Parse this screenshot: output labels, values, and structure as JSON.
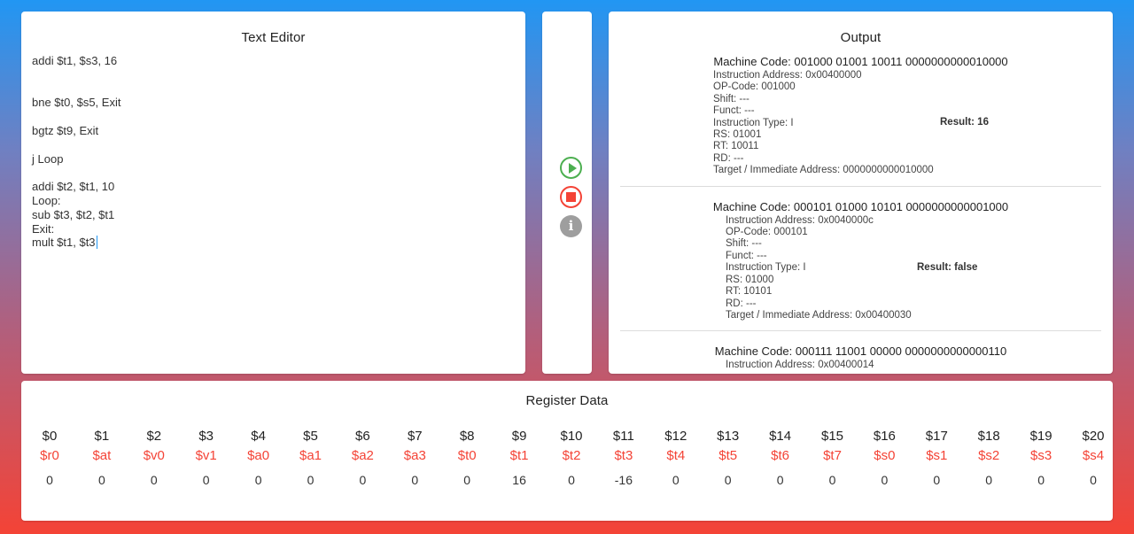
{
  "editor": {
    "title": "Text Editor",
    "lines": [
      "addi $t1, $s3, 16",
      "",
      "",
      "bne $t0, $s5, Exit",
      "",
      "bgtz $t9, Exit",
      "",
      "j Loop",
      "",
      "addi $t2, $t1, 10",
      "Loop:",
      "sub $t3, $t2, $t1",
      "Exit:",
      "mult $t1, $t3"
    ]
  },
  "controls": {
    "run": {
      "icon": "play-circle-icon",
      "color": "#4caf50"
    },
    "stop": {
      "icon": "stop-circle-icon",
      "color": "#f44336"
    },
    "info": {
      "icon": "info-icon",
      "label": "i",
      "color": "#9e9e9e"
    }
  },
  "output": {
    "title": "Output",
    "blocks": [
      {
        "machine_code": "Machine Code: 001000 01001 10011 0000000000010000",
        "instruction_address": "Instruction Address: 0x00400000",
        "op_code": "OP-Code: 001000",
        "shift": "Shift: ---",
        "funct": "Funct: ---",
        "instruction_type": "Instruction Type: I",
        "result": "Result: 16",
        "rs": "RS: 01001",
        "rt": "RT: 10011",
        "rd": "RD: ---",
        "target": "Target / Immediate Address: 0000000000010000"
      },
      {
        "machine_code": "Machine Code: 000101 01000 10101 0000000000001000",
        "instruction_address": "Instruction Address: 0x0040000c",
        "op_code": "OP-Code: 000101",
        "shift": "Shift: ---",
        "funct": "Funct: ---",
        "instruction_type": "Instruction Type: I",
        "result": "Result: false",
        "rs": "RS: 01000",
        "rt": "RT: 10101",
        "rd": "RD: ---",
        "target": "Target / Immediate Address: 0x00400030"
      },
      {
        "machine_code": "Machine Code: 000111 11001 00000 0000000000000110",
        "instruction_address": "Instruction Address: 0x00400014"
      }
    ]
  },
  "registers": {
    "title": "Register Data",
    "items": [
      {
        "num": "$0",
        "alias": "$r0",
        "value": "0"
      },
      {
        "num": "$1",
        "alias": "$at",
        "value": "0"
      },
      {
        "num": "$2",
        "alias": "$v0",
        "value": "0"
      },
      {
        "num": "$3",
        "alias": "$v1",
        "value": "0"
      },
      {
        "num": "$4",
        "alias": "$a0",
        "value": "0"
      },
      {
        "num": "$5",
        "alias": "$a1",
        "value": "0"
      },
      {
        "num": "$6",
        "alias": "$a2",
        "value": "0"
      },
      {
        "num": "$7",
        "alias": "$a3",
        "value": "0"
      },
      {
        "num": "$8",
        "alias": "$t0",
        "value": "0"
      },
      {
        "num": "$9",
        "alias": "$t1",
        "value": "16"
      },
      {
        "num": "$10",
        "alias": "$t2",
        "value": "0"
      },
      {
        "num": "$11",
        "alias": "$t3",
        "value": "-16"
      },
      {
        "num": "$12",
        "alias": "$t4",
        "value": "0"
      },
      {
        "num": "$13",
        "alias": "$t5",
        "value": "0"
      },
      {
        "num": "$14",
        "alias": "$t6",
        "value": "0"
      },
      {
        "num": "$15",
        "alias": "$t7",
        "value": "0"
      },
      {
        "num": "$16",
        "alias": "$s0",
        "value": "0"
      },
      {
        "num": "$17",
        "alias": "$s1",
        "value": "0"
      },
      {
        "num": "$18",
        "alias": "$s2",
        "value": "0"
      },
      {
        "num": "$19",
        "alias": "$s3",
        "value": "0"
      },
      {
        "num": "$20",
        "alias": "$s4",
        "value": "0"
      }
    ]
  },
  "theme": {
    "gradient_top": "#2196f3",
    "gradient_bottom": "#f44336",
    "alias_color": "#f44336"
  }
}
